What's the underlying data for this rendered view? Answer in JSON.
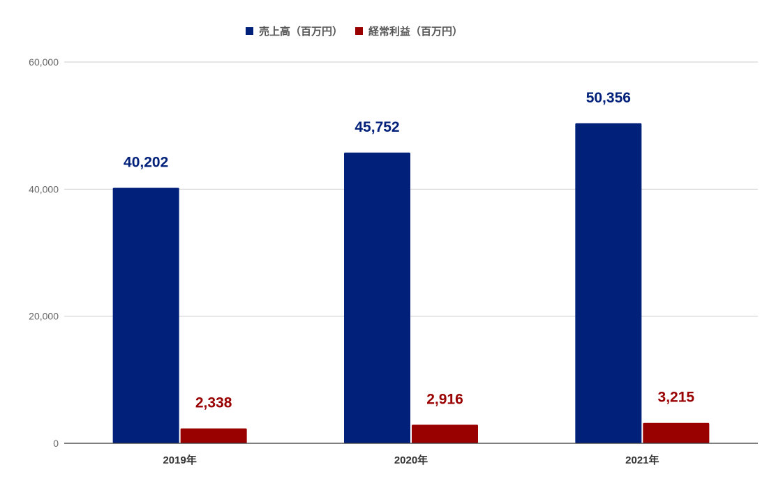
{
  "chart_data": {
    "type": "bar",
    "categories": [
      "2019年",
      "2020年",
      "2021年"
    ],
    "series": [
      {
        "name": "売上高（百万円）",
        "values": [
          40202,
          45752,
          50356
        ],
        "labels": [
          "40,202",
          "45,752",
          "50,356"
        ],
        "color": "#00207a"
      },
      {
        "name": "経常利益（百万円）",
        "values": [
          2338,
          2916,
          3215
        ],
        "labels": [
          "2,338",
          "2,916",
          "3,215"
        ],
        "color": "#990000"
      }
    ],
    "y_ticks": [
      0,
      20000,
      40000,
      60000
    ],
    "y_tick_labels": [
      "0",
      "20,000",
      "40,000",
      "60,000"
    ],
    "ylim": [
      0,
      60000
    ],
    "grid": true,
    "legend_position": "top"
  },
  "colors": {
    "gridline": "#cccccc",
    "axis": "#333333",
    "tick_text": "#666666",
    "category_text": "#333333"
  }
}
